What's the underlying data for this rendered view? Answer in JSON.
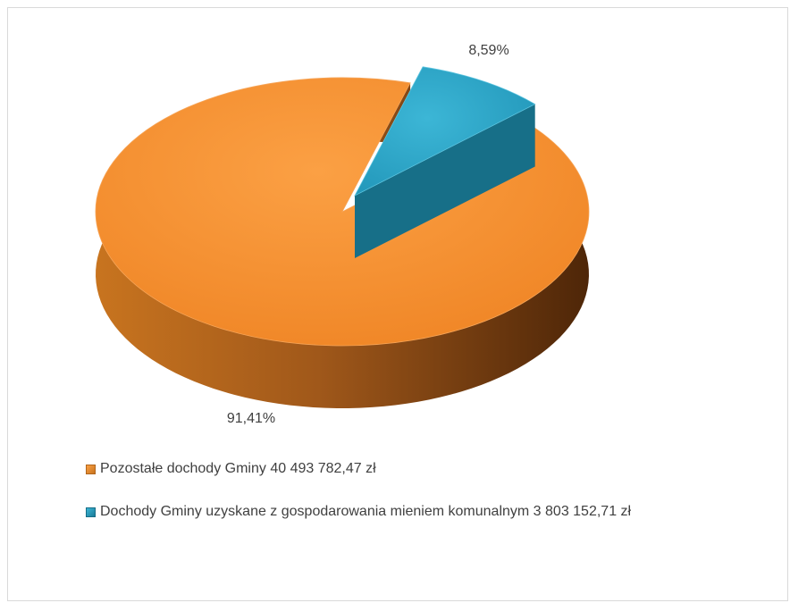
{
  "chart_data": {
    "type": "pie",
    "style": "3d-exploded",
    "title": "",
    "slices": [
      {
        "label": "Pozostałe dochody Gminy 40 493 782,47 zł",
        "value": 91.41,
        "display_value": "91,41%",
        "color": "#F79332"
      },
      {
        "label": "Dochody Gminy uzyskane z gospodarowania mieniem komunalnym 3 803 152,71 zł",
        "value": 8.59,
        "display_value": "8,59%",
        "color": "#2AA6C9"
      }
    ],
    "legend_position": "bottom-left"
  }
}
